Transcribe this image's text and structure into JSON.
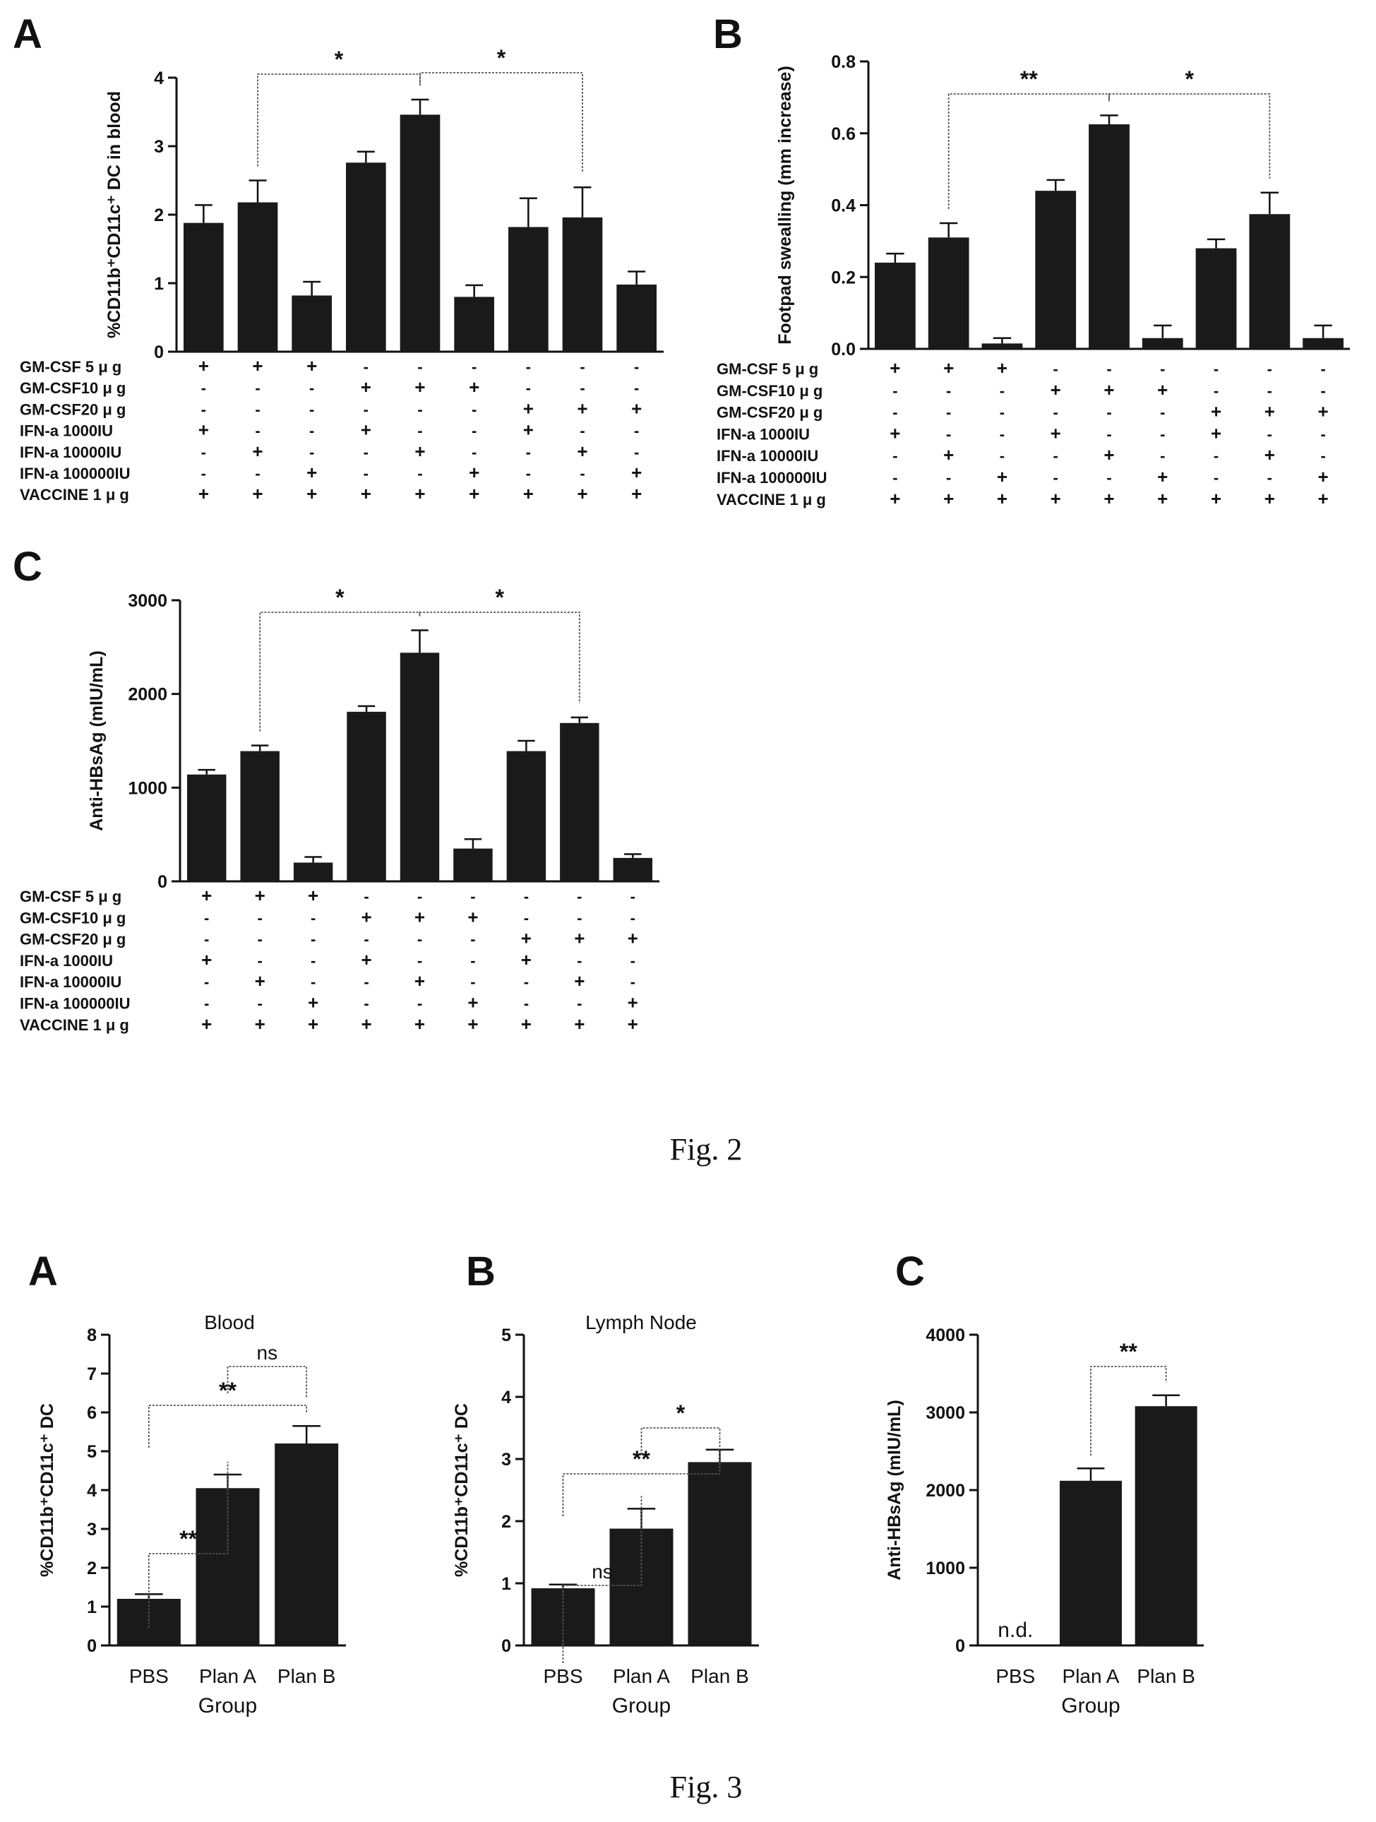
{
  "figures": {
    "fig2_caption": "Fig. 2",
    "fig3_caption": "Fig. 3"
  },
  "conditions": {
    "labels": [
      "GM-CSF  5 μ g",
      "GM-CSF10 μ g",
      "GM-CSF20 μ g",
      "IFN-a    1000IU",
      "IFN-a   10000IU",
      "IFN-a 100000IU",
      "VACCINE  1 μ g"
    ],
    "matrix": [
      [
        "+",
        "+",
        "+",
        "-",
        "-",
        "-",
        "-",
        "-",
        "-"
      ],
      [
        "-",
        "-",
        "-",
        "+",
        "+",
        "+",
        "-",
        "-",
        "-"
      ],
      [
        "-",
        "-",
        "-",
        "-",
        "-",
        "-",
        "+",
        "+",
        "+"
      ],
      [
        "+",
        "-",
        "-",
        "+",
        "-",
        "-",
        "+",
        "-",
        "-"
      ],
      [
        "-",
        "+",
        "-",
        "-",
        "+",
        "-",
        "-",
        "+",
        "-"
      ],
      [
        "-",
        "-",
        "+",
        "-",
        "-",
        "+",
        "-",
        "-",
        "+"
      ],
      [
        "+",
        "+",
        "+",
        "+",
        "+",
        "+",
        "+",
        "+",
        "+"
      ]
    ]
  },
  "chart_data": [
    {
      "panel": "A",
      "figure": "Fig. 2",
      "type": "bar",
      "ylabel": "%CD11b⁺CD11c⁺ DC in blood",
      "ylim": [
        0,
        4
      ],
      "yticks": [
        "0",
        "1",
        "2",
        "3",
        "4"
      ],
      "values": [
        1.88,
        2.18,
        0.82,
        2.76,
        3.46,
        0.8,
        1.82,
        1.96,
        0.98
      ],
      "errors": [
        0.26,
        0.32,
        0.2,
        0.16,
        0.22,
        0.17,
        0.42,
        0.44,
        0.19
      ],
      "significance": [
        {
          "from": 1,
          "to": 4,
          "label": "*"
        },
        {
          "from": 4,
          "to": 7,
          "label": "*"
        }
      ]
    },
    {
      "panel": "B",
      "figure": "Fig. 2",
      "type": "bar",
      "ylabel": "Footpad swealling (mm increase)",
      "ylim": [
        0,
        0.8
      ],
      "yticks": [
        "0.0",
        "0.2",
        "0.4",
        "0.6",
        "0.8"
      ],
      "values": [
        0.24,
        0.31,
        0.015,
        0.44,
        0.625,
        0.03,
        0.28,
        0.375,
        0.03
      ],
      "errors": [
        0.025,
        0.04,
        0.015,
        0.03,
        0.025,
        0.035,
        0.025,
        0.06,
        0.035
      ],
      "significance": [
        {
          "from": 1,
          "to": 4,
          "label": "**"
        },
        {
          "from": 4,
          "to": 7,
          "label": "*"
        }
      ]
    },
    {
      "panel": "C",
      "figure": "Fig. 2",
      "type": "bar",
      "ylabel": "Anti-HBsAg (mIU/mL)",
      "ylim": [
        0,
        3000
      ],
      "yticks": [
        "0",
        "1000",
        "2000",
        "3000"
      ],
      "values": [
        1140,
        1390,
        200,
        1810,
        2440,
        350,
        1390,
        1690,
        250
      ],
      "errors": [
        50,
        60,
        60,
        60,
        240,
        100,
        110,
        60,
        40
      ],
      "significance": [
        {
          "from": 1,
          "to": 4,
          "label": "*"
        },
        {
          "from": 4,
          "to": 7,
          "label": "*"
        }
      ]
    },
    {
      "panel": "A",
      "figure": "Fig. 3",
      "type": "bar",
      "title": "Blood",
      "xlabel": "Group",
      "ylabel": "%CD11b⁺CD11c⁺ DC",
      "categories": [
        "PBS",
        "Plan A",
        "Plan B"
      ],
      "ylim": [
        0,
        8
      ],
      "yticks": [
        "0",
        "1",
        "2",
        "3",
        "4",
        "5",
        "6",
        "7",
        "8"
      ],
      "values": [
        1.2,
        4.05,
        5.2
      ],
      "errors": [
        0.12,
        0.35,
        0.45
      ],
      "significance": [
        {
          "from": 0,
          "to": 1,
          "label": "**"
        },
        {
          "from": 0,
          "to": 2,
          "label": "**"
        },
        {
          "from": 1,
          "to": 2,
          "label": "ns"
        }
      ]
    },
    {
      "panel": "B",
      "figure": "Fig. 3",
      "type": "bar",
      "title": "Lymph Node",
      "xlabel": "Group",
      "ylabel": "%CD11b⁺CD11c⁺ DC",
      "categories": [
        "PBS",
        "Plan A",
        "Plan B"
      ],
      "ylim": [
        0,
        5
      ],
      "yticks": [
        "0",
        "1",
        "2",
        "3",
        "4",
        "5"
      ],
      "values": [
        0.92,
        1.88,
        2.95
      ],
      "errors": [
        0.06,
        0.32,
        0.2
      ],
      "significance": [
        {
          "from": 0,
          "to": 1,
          "label": "ns"
        },
        {
          "from": 0,
          "to": 2,
          "label": "**"
        },
        {
          "from": 1,
          "to": 2,
          "label": "*"
        }
      ]
    },
    {
      "panel": "C",
      "figure": "Fig. 3",
      "type": "bar",
      "xlabel": "Group",
      "ylabel": "Anti-HBsAg (mIU/mL)",
      "categories": [
        "PBS",
        "Plan A",
        "Plan B"
      ],
      "ylim": [
        0,
        4000
      ],
      "yticks": [
        "0",
        "1000",
        "2000",
        "3000",
        "4000"
      ],
      "values": [
        0,
        2120,
        3080
      ],
      "errors": [
        0,
        160,
        140
      ],
      "bar_notes": [
        "n.d.",
        "",
        ""
      ],
      "significance": [
        {
          "from": 1,
          "to": 2,
          "label": "**"
        }
      ]
    }
  ]
}
